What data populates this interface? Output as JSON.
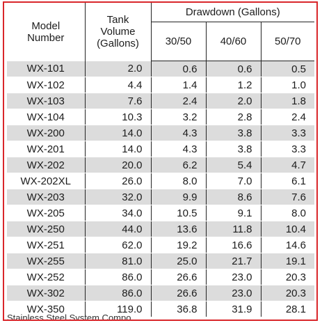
{
  "headers": {
    "model": [
      "Model",
      "Number"
    ],
    "tank": [
      "Tank",
      "Volume",
      "(Gallons)"
    ],
    "drawdown_group": "Drawdown (Gallons)",
    "drawdown": [
      "30/50",
      "40/60",
      "50/70"
    ]
  },
  "rows": [
    [
      "WX-101",
      "2.0",
      "0.6",
      "0.6",
      "0.5"
    ],
    [
      "WX-102",
      "4.4",
      "1.4",
      "1.2",
      "1.0"
    ],
    [
      "WX-103",
      "7.6",
      "2.4",
      "2.0",
      "1.8"
    ],
    [
      "WX-104",
      "10.3",
      "3.2",
      "2.8",
      "2.4"
    ],
    [
      "WX-200",
      "14.0",
      "4.3",
      "3.8",
      "3.3"
    ],
    [
      "WX-201",
      "14.0",
      "4.3",
      "3.8",
      "3.3"
    ],
    [
      "WX-202",
      "20.0",
      "6.2",
      "5.4",
      "4.7"
    ],
    [
      "WX-202XL",
      "26.0",
      "8.0",
      "7.0",
      "6.1"
    ],
    [
      "WX-203",
      "32.0",
      "9.9",
      "8.6",
      "7.6"
    ],
    [
      "WX-205",
      "34.0",
      "10.5",
      "9.1",
      "8.0"
    ],
    [
      "WX-250",
      "44.0",
      "13.6",
      "11.8",
      "10.4"
    ],
    [
      "WX-251",
      "62.0",
      "19.2",
      "16.6",
      "14.6"
    ],
    [
      "WX-255",
      "81.0",
      "25.0",
      "21.7",
      "19.1"
    ],
    [
      "WX-252",
      "86.0",
      "26.6",
      "23.0",
      "20.3"
    ],
    [
      "WX-302",
      "86.0",
      "26.6",
      "23.0",
      "20.3"
    ],
    [
      "WX-350",
      "119.0",
      "36.8",
      "31.9",
      "28.1"
    ]
  ],
  "tail_text": "Stainless Steel System Compo",
  "colors": {
    "frame": "#d9262a",
    "shade": "#dcdcdc"
  }
}
